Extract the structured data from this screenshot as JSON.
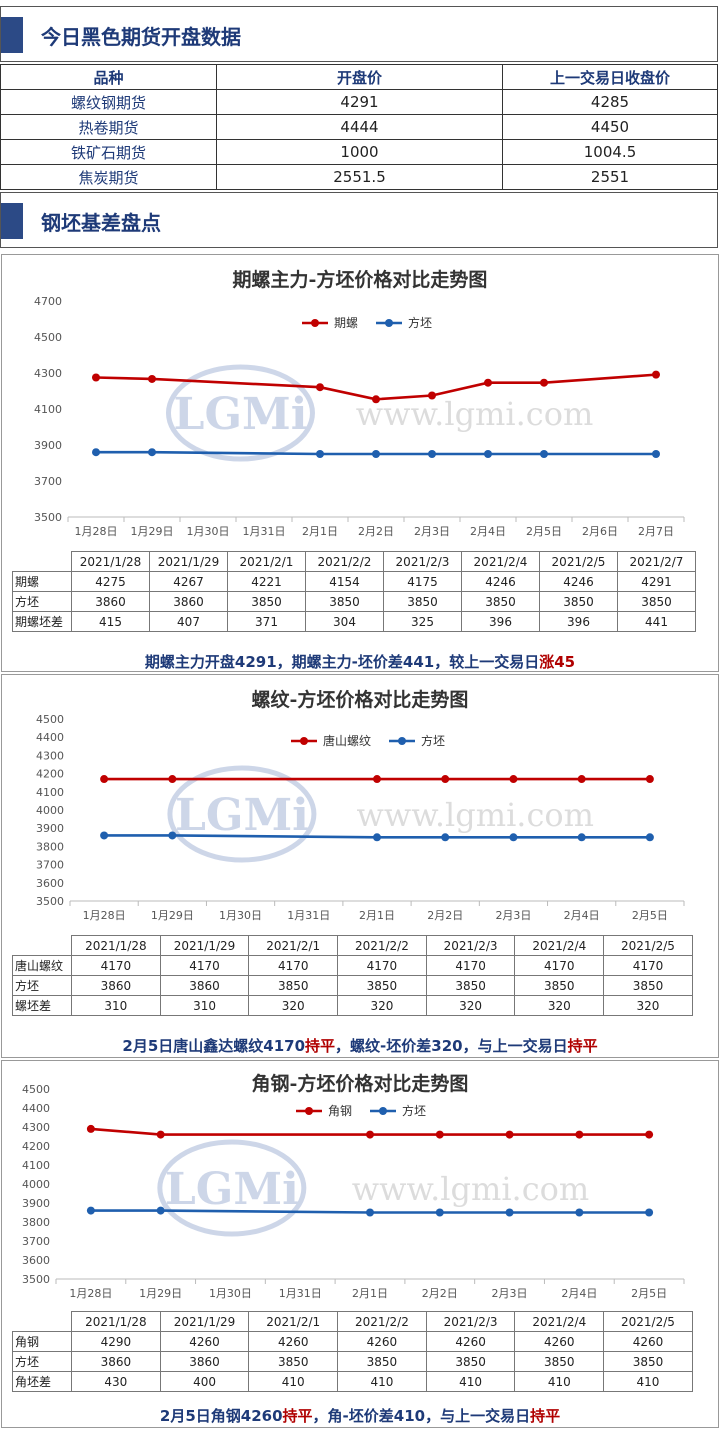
{
  "section1": {
    "title": "今日黑色期货开盘数据"
  },
  "futures_table": {
    "headers": [
      "品种",
      "开盘价",
      "上一交易日收盘价"
    ],
    "rows": [
      [
        "螺纹钢期货",
        "4291",
        "4285"
      ],
      [
        "热卷期货",
        "4444",
        "4450"
      ],
      [
        "铁矿石期货",
        "1000",
        "1004.5"
      ],
      [
        "焦炭期货",
        "2551.5",
        "2551"
      ]
    ]
  },
  "section2": {
    "title": "钢坯基差盘点"
  },
  "watermark": {
    "logo": "LGMi",
    "url": "www.lgmi.com"
  },
  "colors": {
    "red": "#c00000",
    "blue": "#1f5fae",
    "accent": "#2c4a86"
  },
  "chart_data": [
    {
      "type": "line",
      "title": "期螺主力-方坯价格对比走势图",
      "categories": [
        "1月28日",
        "1月29日",
        "1月30日",
        "1月31日",
        "2月1日",
        "2月2日",
        "2月3日",
        "2月4日",
        "2月5日",
        "2月6日",
        "2月7日"
      ],
      "ylim": [
        3500,
        4700
      ],
      "yticks": [
        3500,
        3700,
        3900,
        4100,
        4300,
        4500,
        4700
      ],
      "legend_position": "top-center",
      "series": [
        {
          "name": "期螺",
          "color": "#c00000",
          "values": [
            4275,
            4267,
            null,
            null,
            4221,
            4154,
            4175,
            4246,
            4246,
            null,
            4291
          ]
        },
        {
          "name": "方坯",
          "color": "#1f5fae",
          "values": [
            3860,
            3860,
            null,
            null,
            3850,
            3850,
            3850,
            3850,
            3850,
            null,
            3850
          ]
        }
      ],
      "table": {
        "dates": [
          "2021/1/28",
          "2021/1/29",
          "2021/2/1",
          "2021/2/2",
          "2021/2/3",
          "2021/2/4",
          "2021/2/5",
          "2021/2/7"
        ],
        "rows": [
          {
            "label": "期螺",
            "values": [
              "4275",
              "4267",
              "4221",
              "4154",
              "4175",
              "4246",
              "4246",
              "4291"
            ]
          },
          {
            "label": "方坯",
            "values": [
              "3860",
              "3860",
              "3850",
              "3850",
              "3850",
              "3850",
              "3850",
              "3850"
            ]
          },
          {
            "label": "期螺坯差",
            "values": [
              "415",
              "407",
              "371",
              "304",
              "325",
              "396",
              "396",
              "441"
            ]
          }
        ]
      },
      "caption": {
        "parts": [
          {
            "text": "期螺主力开盘4291，期螺主力-坯价差441，较上一交易日",
            "red": false
          },
          {
            "text": "涨45",
            "red": true
          }
        ]
      }
    },
    {
      "type": "line",
      "title": "螺纹-方坯价格对比走势图",
      "categories": [
        "1月28日",
        "1月29日",
        "1月30日",
        "1月31日",
        "2月1日",
        "2月2日",
        "2月3日",
        "2月4日",
        "2月5日"
      ],
      "ylim": [
        3500,
        4500
      ],
      "yticks": [
        3500,
        3600,
        3700,
        3800,
        3900,
        4000,
        4100,
        4200,
        4300,
        4400,
        4500
      ],
      "legend_position": "top-center",
      "series": [
        {
          "name": "唐山螺纹",
          "color": "#c00000",
          "values": [
            4170,
            4170,
            null,
            null,
            4170,
            4170,
            4170,
            4170,
            4170
          ]
        },
        {
          "name": "方坯",
          "color": "#1f5fae",
          "values": [
            3860,
            3860,
            null,
            null,
            3850,
            3850,
            3850,
            3850,
            3850
          ]
        }
      ],
      "table": {
        "dates": [
          "2021/1/28",
          "2021/1/29",
          "2021/2/1",
          "2021/2/2",
          "2021/2/3",
          "2021/2/4",
          "2021/2/5"
        ],
        "rows": [
          {
            "label": "唐山螺纹",
            "values": [
              "4170",
              "4170",
              "4170",
              "4170",
              "4170",
              "4170",
              "4170"
            ]
          },
          {
            "label": "方坯",
            "values": [
              "3860",
              "3860",
              "3850",
              "3850",
              "3850",
              "3850",
              "3850"
            ]
          },
          {
            "label": "螺坯差",
            "values": [
              "310",
              "310",
              "320",
              "320",
              "320",
              "320",
              "320"
            ]
          }
        ]
      },
      "caption": {
        "parts": [
          {
            "text": "2月5日唐山鑫达螺纹4170",
            "red": false
          },
          {
            "text": "持平",
            "red": true
          },
          {
            "text": "，螺纹-坯价差320，与上一交易日",
            "red": false
          },
          {
            "text": "持平",
            "red": true
          }
        ]
      }
    },
    {
      "type": "line",
      "title": "角钢-方坯价格对比走势图",
      "categories": [
        "1月28日",
        "1月29日",
        "1月30日",
        "1月31日",
        "2月1日",
        "2月2日",
        "2月3日",
        "2月4日",
        "2月5日"
      ],
      "ylim": [
        3500,
        4500
      ],
      "yticks": [
        3500,
        3600,
        3700,
        3800,
        3900,
        4000,
        4100,
        4200,
        4300,
        4400,
        4500
      ],
      "legend_position": "top-center",
      "series": [
        {
          "name": "角钢",
          "color": "#c00000",
          "values": [
            4290,
            4260,
            null,
            null,
            4260,
            4260,
            4260,
            4260,
            4260
          ]
        },
        {
          "name": "方坯",
          "color": "#1f5fae",
          "values": [
            3860,
            3860,
            null,
            null,
            3850,
            3850,
            3850,
            3850,
            3850
          ]
        }
      ],
      "table": {
        "dates": [
          "2021/1/28",
          "2021/1/29",
          "2021/2/1",
          "2021/2/2",
          "2021/2/3",
          "2021/2/4",
          "2021/2/5"
        ],
        "rows": [
          {
            "label": "角钢",
            "values": [
              "4290",
              "4260",
              "4260",
              "4260",
              "4260",
              "4260",
              "4260"
            ]
          },
          {
            "label": "方坯",
            "values": [
              "3860",
              "3860",
              "3850",
              "3850",
              "3850",
              "3850",
              "3850"
            ]
          },
          {
            "label": "角坯差",
            "values": [
              "430",
              "400",
              "410",
              "410",
              "410",
              "410",
              "410"
            ]
          }
        ]
      },
      "caption": {
        "parts": [
          {
            "text": "2月5日角钢4260",
            "red": false
          },
          {
            "text": "持平",
            "red": true
          },
          {
            "text": "，角-坯价差410，与上一交易日",
            "red": false
          },
          {
            "text": "持平",
            "red": true
          }
        ]
      }
    }
  ]
}
